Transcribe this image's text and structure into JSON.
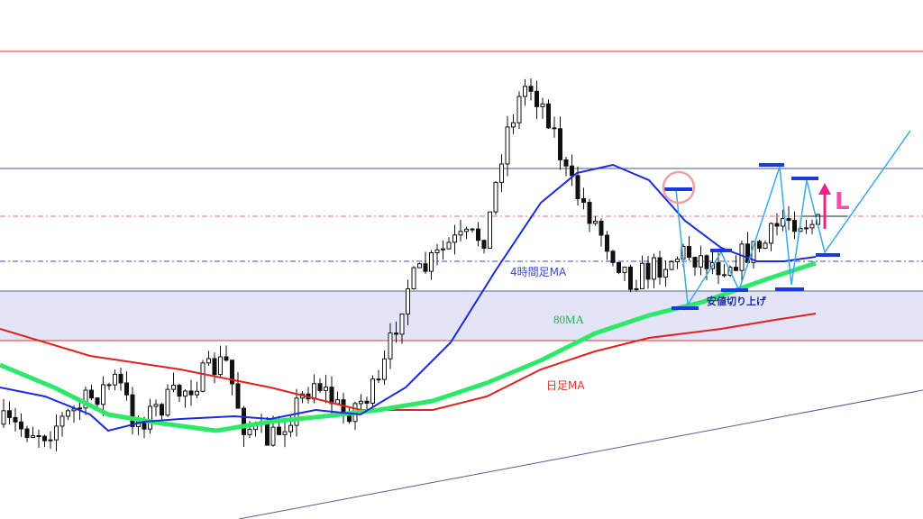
{
  "annotations": {
    "ma_4h": "4時間足MA",
    "ma_80": "80MA",
    "ma_daily": "日足MA",
    "higher_lows": "安値切り上げ",
    "entry": "L"
  }
}
